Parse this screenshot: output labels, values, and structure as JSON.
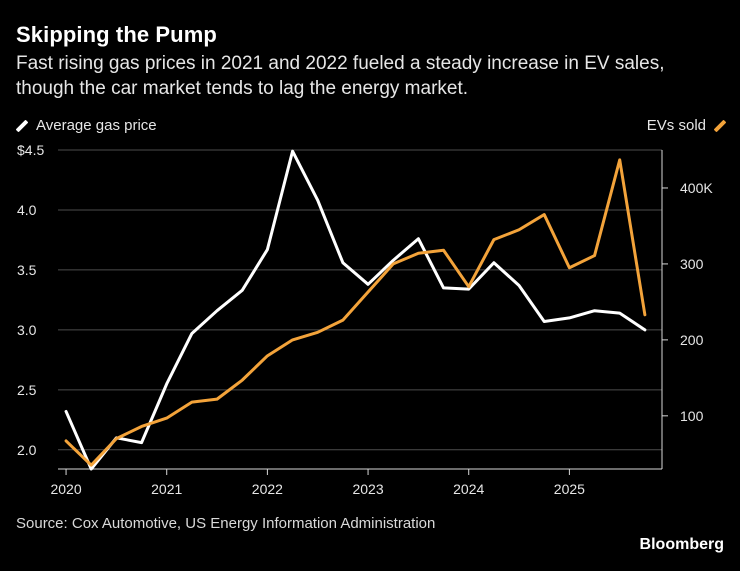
{
  "title": "Skipping the Pump",
  "subtitle": "Fast rising gas prices in 2021 and 2022 fueled a steady increase in EV sales, though the car market tends to lag the energy market.",
  "legend": {
    "left": "Average gas price",
    "right": "EVs sold"
  },
  "source": "Source: Cox Automotive, US Energy Information Administration",
  "brand": "Bloomberg",
  "colors": {
    "background": "#000000",
    "gas": "#ffffff",
    "ev": "#f3a33a",
    "grid": "#4d4d4d",
    "axis": "#d9d9d9"
  },
  "chart_data": {
    "type": "line",
    "x": [
      2020.0,
      2020.25,
      2020.5,
      2020.75,
      2021.0,
      2021.25,
      2021.5,
      2021.75,
      2022.0,
      2022.25,
      2022.5,
      2022.75,
      2023.0,
      2023.25,
      2023.5,
      2023.75,
      2024.0,
      2024.25,
      2024.5,
      2024.75,
      2025.0,
      2025.25,
      2025.5,
      2025.75
    ],
    "series": [
      {
        "name": "Average gas price",
        "axis": "left",
        "color": "#ffffff",
        "values": [
          2.32,
          1.84,
          2.1,
          2.06,
          2.55,
          2.97,
          3.16,
          3.33,
          3.67,
          4.49,
          4.08,
          3.56,
          3.38,
          3.58,
          3.76,
          3.35,
          3.34,
          3.56,
          3.37,
          3.07,
          3.1,
          3.16,
          3.14,
          3.0
        ]
      },
      {
        "name": "EVs sold",
        "axis": "right",
        "color": "#f3a33a",
        "values": [
          67000,
          35000,
          70000,
          86000,
          97000,
          118000,
          122000,
          147000,
          179000,
          200000,
          210000,
          226000,
          263000,
          300000,
          314000,
          318000,
          270000,
          332000,
          345000,
          365000,
          295000,
          311000,
          437000,
          233000
        ]
      }
    ],
    "x_ticks": [
      "2020",
      "2021",
      "2022",
      "2023",
      "2024",
      "2025"
    ],
    "y_left_ticks": [
      "$4.5",
      "4.0",
      "3.5",
      "3.0",
      "2.5",
      "2.0"
    ],
    "y_right_ticks": [
      "400K",
      "300",
      "200",
      "100"
    ],
    "y_left_range": [
      1.84,
      4.5
    ],
    "y_right_range": [
      30000,
      450000
    ],
    "x_range": [
      2019.92,
      2025.92
    ],
    "grid": "horizontal (left axis)",
    "legend_placement": "top, split left/right"
  }
}
